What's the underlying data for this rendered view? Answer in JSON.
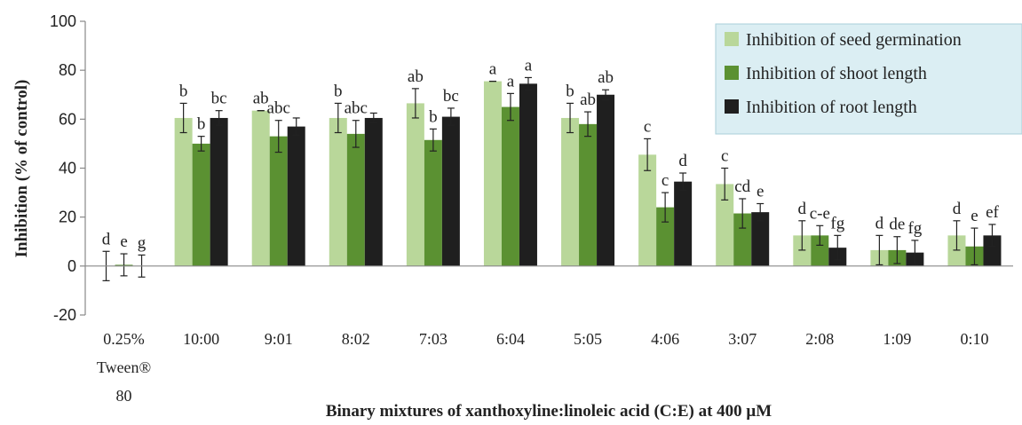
{
  "chart_data": {
    "type": "bar",
    "title": "",
    "xlabel": "Binary mixtures of xanthoxyline:linoleic acid (C:E) at 400 μM",
    "ylabel": "Inhibition (% of control)",
    "ylim": [
      -20,
      100
    ],
    "yticks": [
      -20,
      0,
      20,
      40,
      60,
      80,
      100
    ],
    "grid": false,
    "legend_position": "top-right",
    "categories": [
      [
        "0.25%",
        "Tween®",
        "80"
      ],
      [
        "10:00"
      ],
      [
        "9:01"
      ],
      [
        "8:02"
      ],
      [
        "7:03"
      ],
      [
        "6:04"
      ],
      [
        "5:05"
      ],
      [
        "4:06"
      ],
      [
        "3:07"
      ],
      [
        "2:08"
      ],
      [
        "1:09"
      ],
      [
        "0:10"
      ]
    ],
    "series": [
      {
        "name": "Inhibition of seed germination",
        "color": "#b9d79a",
        "values": [
          0,
          60.5,
          63.5,
          60.5,
          66.5,
          75.5,
          60.5,
          45.5,
          33.5,
          12.5,
          6.5,
          12.5
        ],
        "errors": [
          6,
          6,
          0,
          6,
          6,
          0,
          6,
          6.5,
          6.5,
          6,
          6,
          6
        ],
        "letters": [
          "d",
          "b",
          "ab",
          "b",
          "ab",
          "a",
          "b",
          "c",
          "c",
          "d",
          "d",
          "d"
        ]
      },
      {
        "name": "Inhibition of shoot length",
        "color": "#5b9132",
        "values": [
          0.5,
          50,
          53,
          54,
          51.5,
          65,
          58,
          24,
          21.5,
          12.5,
          6.5,
          8
        ],
        "errors": [
          4.5,
          3,
          6.5,
          5.5,
          4.5,
          5.5,
          5,
          6,
          6,
          4,
          5.5,
          7.5
        ],
        "letters": [
          "e",
          "b",
          "abc",
          "abc",
          "b",
          "a",
          "ab",
          "c",
          "cd",
          "c-e",
          "de",
          "e"
        ]
      },
      {
        "name": "Inhibition of root length",
        "color": "#1f1f1f",
        "values": [
          0,
          60.5,
          57,
          60.5,
          61,
          74.5,
          70,
          34.5,
          22,
          7.5,
          5.5,
          12.5
        ],
        "errors": [
          4.5,
          3,
          3.5,
          2,
          3.5,
          2.5,
          2,
          3.5,
          3.5,
          5,
          5,
          4.5
        ],
        "letters": [
          "g",
          "bc",
          "",
          "",
          "bc",
          "a",
          "ab",
          "d",
          "e",
          "fg",
          "fg",
          "ef"
        ]
      }
    ]
  }
}
